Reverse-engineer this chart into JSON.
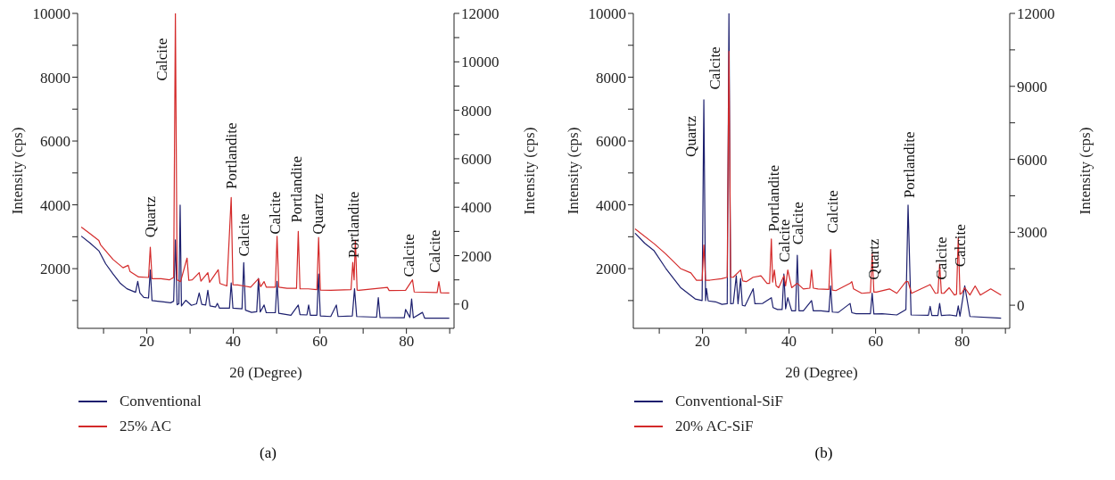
{
  "chart_data": [
    {
      "type": "line",
      "title": "(a)",
      "xlabel": "2θ (Degree)",
      "ylabel": "Intensity (cps)",
      "y2label": "Intensity (cps)",
      "xlim": [
        4,
        91
      ],
      "xticks": [
        {
          "value": 10,
          "label": null
        },
        20,
        {
          "value": 30,
          "label": null
        },
        40,
        {
          "value": 50,
          "label": null
        },
        60,
        {
          "value": 70,
          "label": null
        },
        80,
        {
          "value": 90,
          "label": null
        }
      ],
      "ylim": [
        130,
        10000
      ],
      "yticks": [
        {
          "value": 1000,
          "label": null
        },
        2000,
        {
          "value": 3000,
          "label": null
        },
        4000,
        {
          "value": 5000,
          "label": null
        },
        6000,
        {
          "value": 7000,
          "label": null
        },
        8000,
        {
          "value": 9000,
          "label": null
        },
        10000
      ],
      "y2lim": [
        -1000,
        12000
      ],
      "y2ticks": [
        0,
        {
          "value": 1000,
          "label": null
        },
        2000,
        {
          "value": 3000,
          "label": null
        },
        4000,
        {
          "value": 5000,
          "label": null
        },
        6000,
        {
          "value": 7000,
          "label": null
        },
        8000,
        {
          "value": 9000,
          "label": null
        },
        10000,
        {
          "value": 11000,
          "label": null
        },
        12000
      ],
      "legend": "bottom left",
      "grid": false,
      "series": [
        {
          "name": "Conventional",
          "color": "#1c1f6e",
          "x": [
            4.85,
            6.9,
            8.9,
            10.5,
            12.2,
            13.8,
            15.4,
            17.4,
            17.9,
            18.4,
            19.3,
            20.4,
            20.8,
            21.2,
            22.5,
            23.9,
            25.5,
            26.2,
            26.6,
            27.0,
            27.4,
            27.7,
            28.0,
            29.0,
            30.3,
            31.5,
            32.1,
            32.7,
            33.6,
            34.1,
            34.6,
            35.9,
            36.3,
            36.8,
            39.1,
            39.5,
            39.9,
            42.0,
            42.4,
            42.8,
            44.2,
            45.4,
            45.8,
            46.2,
            47.1,
            47.6,
            49.7,
            50.1,
            50.5,
            53.3,
            55.0,
            55.4,
            57.0,
            57.4,
            57.8,
            59.3,
            59.7,
            60.1,
            62.5,
            63.8,
            64.2,
            67.5,
            68.0,
            68.5,
            73.1,
            73.5,
            73.9,
            79.5,
            79.8,
            80.8,
            81.2,
            81.6,
            83.7,
            84.2,
            89.9
          ],
          "values": [
            3020,
            2800,
            2560,
            2150,
            1830,
            1550,
            1370,
            1260,
            1600,
            1240,
            1100,
            1080,
            1960,
            1000,
            980,
            960,
            930,
            980,
            2900,
            870,
            900,
            3990,
            830,
            1010,
            850,
            900,
            1240,
            880,
            860,
            1320,
            830,
            800,
            910,
            760,
            760,
            1550,
            760,
            740,
            2190,
            700,
            630,
            650,
            1690,
            640,
            860,
            620,
            620,
            1600,
            600,
            540,
            860,
            560,
            550,
            860,
            540,
            540,
            1830,
            520,
            500,
            860,
            500,
            520,
            1370,
            500,
            480,
            1090,
            470,
            460,
            720,
            470,
            1050,
            460,
            630,
            450,
            450
          ]
        },
        {
          "name": "25% AC",
          "color": "#d42a2a",
          "axis": "y2",
          "x": [
            4.85,
            6.9,
            8.9,
            9.3,
            12.2,
            14.5,
            15.7,
            16.1,
            18.1,
            20.4,
            20.8,
            21.2,
            23.3,
            25.2,
            26.2,
            26.6,
            27.0,
            27.8,
            29.3,
            29.7,
            30.5,
            32.1,
            32.5,
            34.1,
            34.5,
            36.5,
            36.9,
            38.5,
            39.5,
            39.9,
            41.0,
            42.4,
            44.0,
            45.8,
            46.3,
            47.1,
            47.6,
            49.7,
            50.1,
            50.5,
            52.4,
            54.6,
            55.0,
            55.4,
            57.3,
            59.3,
            59.7,
            60.1,
            62.5,
            67.2,
            67.6,
            67.9,
            68.2,
            68.6,
            69.0,
            75.6,
            76.0,
            79.8,
            81.4,
            81.8,
            87.1,
            87.5,
            87.9,
            89.9
          ],
          "values": [
            3180,
            2900,
            2630,
            2450,
            1840,
            1500,
            1600,
            1350,
            1120,
            1100,
            2350,
            1050,
            1050,
            1000,
            1100,
            12000,
            1000,
            930,
            1900,
            980,
            1000,
            1300,
            950,
            1300,
            900,
            1420,
            850,
            750,
            4400,
            800,
            790,
            750,
            700,
            1050,
            720,
            930,
            700,
            700,
            2800,
            700,
            650,
            650,
            3000,
            630,
            630,
            600,
            2750,
            580,
            570,
            600,
            1720,
            1000,
            2630,
            580,
            570,
            690,
            560,
            570,
            1000,
            500,
            480,
            930,
            470,
            460
          ]
        }
      ],
      "annotations": [
        "Quartz",
        "Calcite",
        "Portlandite",
        "Calcite",
        "Calcite",
        "Portlandite",
        "Quartz",
        "Portlandite",
        "Calcite",
        "Calcite"
      ]
    },
    {
      "type": "line",
      "title": "(b)",
      "xlabel": "2θ (Degree)",
      "ylabel": "Intensity (cps)",
      "y2label": "Intensity (cps)",
      "xlim": [
        4,
        91
      ],
      "xticks": [
        {
          "value": 10,
          "label": null
        },
        20,
        {
          "value": 30,
          "label": null
        },
        40,
        {
          "value": 50,
          "label": null
        },
        60,
        {
          "value": 70,
          "label": null
        },
        80,
        {
          "value": 90,
          "label": null
        }
      ],
      "ylim": [
        130,
        10000
      ],
      "yticks": [
        {
          "value": 1000,
          "label": null
        },
        2000,
        {
          "value": 3000,
          "label": null
        },
        4000,
        {
          "value": 5000,
          "label": null
        },
        6000,
        {
          "value": 7000,
          "label": null
        },
        8000,
        {
          "value": 9000,
          "label": null
        },
        10000
      ],
      "y2lim": [
        -950,
        12000
      ],
      "y2ticks": [
        0,
        {
          "value": 1500,
          "label": null
        },
        3000,
        {
          "value": 4500,
          "label": null
        },
        6000,
        {
          "value": 7500,
          "label": null
        },
        9000,
        {
          "value": 10500,
          "label": null
        },
        12000
      ],
      "legend": "bottom left",
      "grid": false,
      "series": [
        {
          "name": "Conventional-SiF",
          "color": "#1c1f6e",
          "x": [
            4.4,
            6.6,
            8.8,
            11.5,
            14.9,
            18.3,
            19.9,
            20.3,
            20.7,
            20.9,
            21.3,
            23.0,
            24.5,
            25.7,
            26.1,
            26.5,
            27.1,
            27.8,
            28.2,
            28.8,
            29.2,
            29.8,
            31.7,
            32.1,
            33.9,
            35.9,
            36.3,
            37.3,
            38.4,
            38.8,
            39.2,
            39.7,
            40.6,
            41.5,
            41.9,
            42.3,
            43.3,
            45.2,
            45.6,
            47.4,
            49.2,
            49.6,
            50.0,
            51.4,
            54.1,
            54.5,
            55.5,
            58.8,
            59.2,
            59.6,
            61.5,
            64.9,
            67.0,
            67.5,
            68.2,
            72.2,
            72.6,
            73.0,
            74.4,
            74.8,
            75.2,
            77.1,
            78.7,
            79.1,
            79.5,
            80.6,
            81.8,
            89.0
          ],
          "values": [
            3110,
            2800,
            2560,
            2010,
            1410,
            1050,
            1000,
            7290,
            1000,
            1380,
            990,
            960,
            880,
            900,
            10000,
            900,
            910,
            1780,
            900,
            1690,
            850,
            830,
            1370,
            900,
            910,
            1090,
            780,
            720,
            720,
            1830,
            740,
            1090,
            680,
            680,
            2420,
            680,
            680,
            1000,
            680,
            680,
            650,
            1460,
            640,
            630,
            910,
            620,
            590,
            590,
            1230,
            580,
            590,
            550,
            720,
            3990,
            550,
            540,
            820,
            530,
            530,
            910,
            530,
            550,
            520,
            830,
            510,
            1460,
            500,
            450
          ]
        },
        {
          "name": "20% AC-SiF",
          "color": "#d42a2a",
          "axis": "y2",
          "x": [
            4.4,
            8.8,
            11.5,
            14.9,
            17.3,
            18.6,
            19.9,
            20.3,
            20.7,
            21.7,
            24.4,
            25.7,
            26.1,
            26.5,
            27.1,
            28.8,
            29.3,
            30.1,
            31.7,
            33.5,
            34.9,
            35.5,
            35.9,
            36.2,
            36.6,
            37.0,
            37.6,
            38.8,
            39.2,
            39.7,
            40.6,
            41.9,
            43.3,
            44.8,
            45.2,
            45.6,
            46.7,
            49.2,
            49.6,
            50.0,
            50.8,
            54.1,
            54.5,
            54.9,
            56.8,
            58.8,
            59.2,
            59.6,
            60.2,
            63.2,
            64.9,
            67.0,
            67.5,
            68.3,
            72.6,
            73.8,
            74.4,
            74.8,
            75.2,
            75.8,
            77.0,
            78.2,
            78.7,
            79.1,
            79.5,
            79.9,
            80.6,
            81.8,
            83.0,
            84.2,
            86.6,
            89.0
          ],
          "values": [
            3140,
            2530,
            2110,
            1510,
            1330,
            1030,
            1030,
            2480,
            1030,
            1030,
            1090,
            1150,
            10440,
            1150,
            1150,
            1450,
            1000,
            970,
            1150,
            1210,
            900,
            900,
            2720,
            950,
            1450,
            800,
            720,
            1210,
            800,
            1450,
            720,
            900,
            670,
            700,
            1450,
            700,
            670,
            650,
            2290,
            620,
            600,
            900,
            970,
            670,
            490,
            520,
            2110,
            540,
            540,
            670,
            490,
            970,
            970,
            490,
            850,
            490,
            500,
            1690,
            490,
            490,
            720,
            420,
            450,
            2780,
            450,
            490,
            720,
            420,
            790,
            420,
            670,
            420
          ]
        }
      ],
      "annotations": [
        "Quartz",
        "Calcite",
        "Portlandite",
        "Calcite",
        "Calcite",
        "Calcite",
        "Quartz",
        "Portlandite",
        "Calcite",
        "Calcite"
      ]
    }
  ]
}
